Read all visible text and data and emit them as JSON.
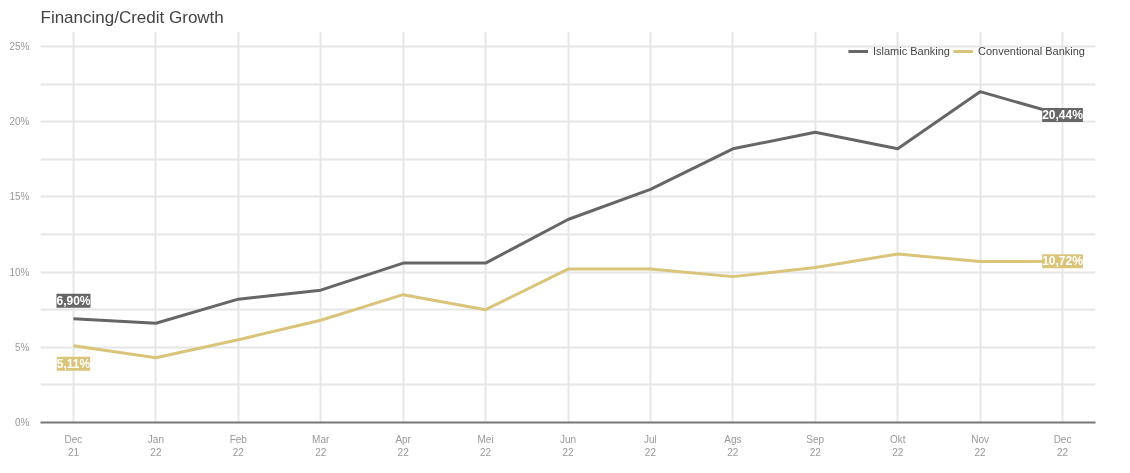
{
  "chart_data": {
    "type": "line",
    "title": "Financing/Credit Growth",
    "categories": [
      "Dec\n21",
      "Jan\n22",
      "Feb\n22",
      "Mar\n22",
      "Apr\n22",
      "Mei\n22",
      "Jun\n22",
      "Jul\n22",
      "Ags\n22",
      "Sep\n22",
      "Okt\n22",
      "Nov\n22",
      "Dec\n22"
    ],
    "series": [
      {
        "name": "Islamic Banking",
        "color": "#666666",
        "values": [
          6.9,
          6.6,
          8.2,
          8.8,
          10.6,
          10.6,
          13.5,
          15.5,
          18.2,
          19.3,
          18.2,
          22.0,
          20.44
        ],
        "value_labels": [
          "6,90%",
          null,
          null,
          null,
          null,
          null,
          null,
          null,
          null,
          null,
          null,
          null,
          "20,44%"
        ]
      },
      {
        "name": "Conventional Banking",
        "color": "#d9c47a",
        "values": [
          5.11,
          4.3,
          5.5,
          6.8,
          8.5,
          7.5,
          10.2,
          10.2,
          9.7,
          10.3,
          11.2,
          10.7,
          10.72
        ],
        "value_labels": [
          "5,11%",
          null,
          null,
          null,
          null,
          null,
          null,
          null,
          null,
          null,
          null,
          null,
          "10,72%"
        ]
      }
    ],
    "ylim": [
      0,
      26
    ],
    "yticks": [
      {
        "value": 0,
        "label": "0%"
      },
      {
        "value": 2.5,
        "label": null
      },
      {
        "value": 5,
        "label": "5%"
      },
      {
        "value": 7.5,
        "label": null
      },
      {
        "value": 10,
        "label": "10%"
      },
      {
        "value": 12.5,
        "label": null
      },
      {
        "value": 15,
        "label": "15%"
      },
      {
        "value": 17.5,
        "label": null
      },
      {
        "value": 20,
        "label": "20%"
      },
      {
        "value": 22.5,
        "label": null
      },
      {
        "value": 25,
        "label": "25%"
      }
    ],
    "grid": true,
    "legend": "top right",
    "line_style": "solid"
  }
}
